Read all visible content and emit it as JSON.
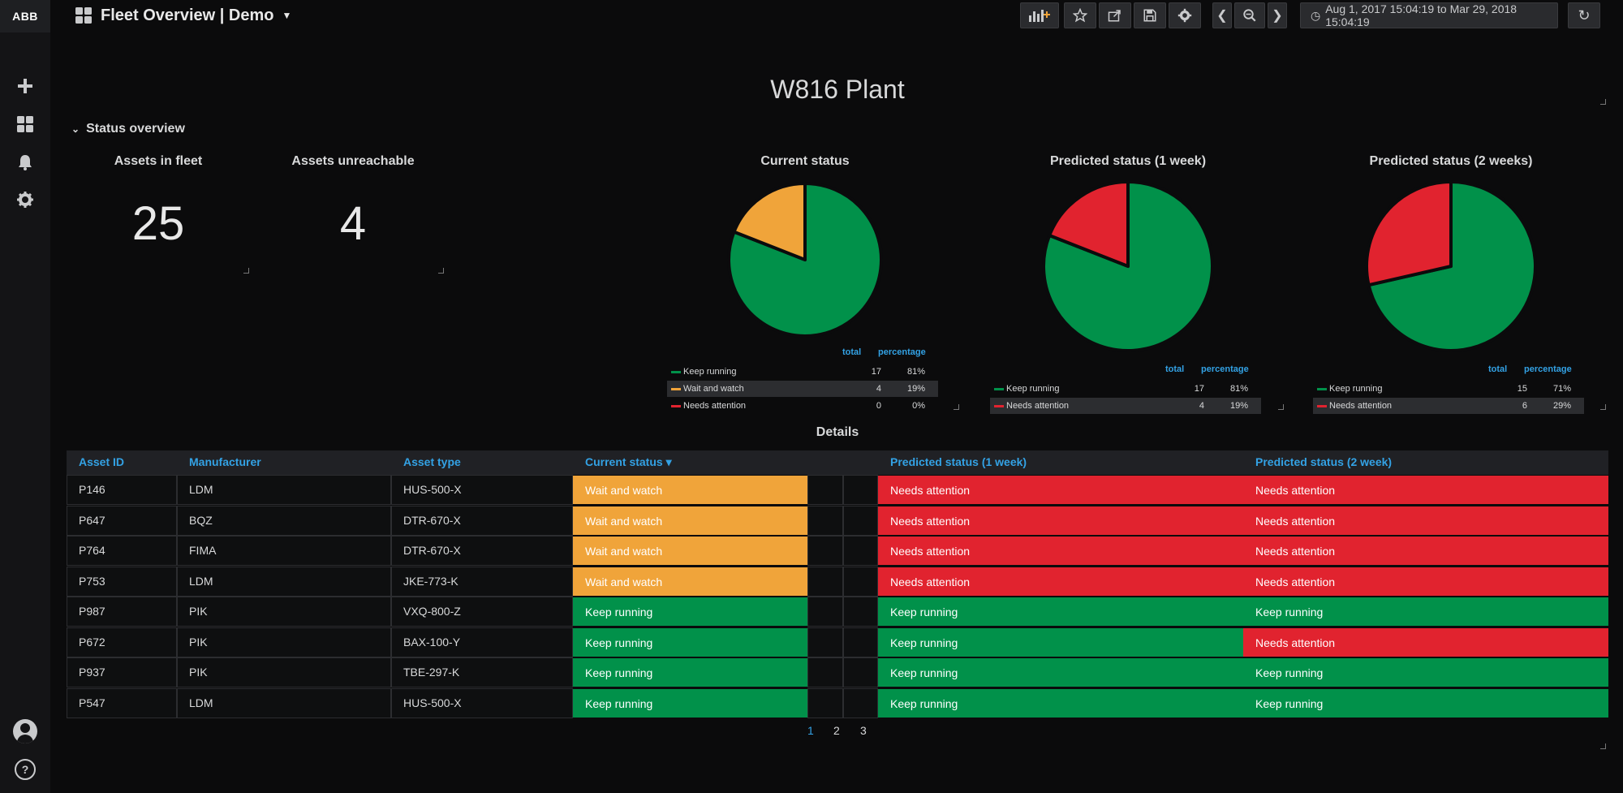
{
  "app": {
    "logo": "ABB",
    "dashboard_title": "Fleet Overview | Demo"
  },
  "toolbar": {
    "time_range": "Aug 1, 2017 15:04:19 to Mar 29, 2018 15:04:19"
  },
  "page_title": "W816 Plant",
  "row_title": "Status overview",
  "stats": [
    {
      "title": "Assets in fleet",
      "value": "25"
    },
    {
      "title": "Assets unreachable",
      "value": "4"
    }
  ],
  "colors": {
    "green": "#01914a",
    "orange": "#f0a43a",
    "red": "#e1232f",
    "accent": "#33a2e5"
  },
  "pies": [
    {
      "title": "Current status",
      "col_total": "total",
      "col_pct": "percentage",
      "slices": [
        {
          "name": "Keep running",
          "total": "17",
          "pct": "81%",
          "value": 17,
          "color": "#01914a"
        },
        {
          "name": "Wait and watch",
          "total": "4",
          "pct": "19%",
          "value": 4,
          "color": "#f0a43a"
        },
        {
          "name": "Needs attention",
          "total": "0",
          "pct": "0%",
          "value": 0,
          "color": "#e1232f"
        }
      ]
    },
    {
      "title": "Predicted status (1 week)",
      "col_total": "total",
      "col_pct": "percentage",
      "slices": [
        {
          "name": "Keep running",
          "total": "17",
          "pct": "81%",
          "value": 17,
          "color": "#01914a"
        },
        {
          "name": "Needs attention",
          "total": "4",
          "pct": "19%",
          "value": 4,
          "color": "#e1232f"
        }
      ]
    },
    {
      "title": "Predicted status (2 weeks)",
      "col_total": "total",
      "col_pct": "percentage",
      "slices": [
        {
          "name": "Keep running",
          "total": "15",
          "pct": "71%",
          "value": 15,
          "color": "#01914a"
        },
        {
          "name": "Needs attention",
          "total": "6",
          "pct": "29%",
          "value": 6,
          "color": "#e1232f"
        }
      ]
    }
  ],
  "details": {
    "title": "Details",
    "columns": [
      "Asset ID",
      "Manufacturer",
      "Asset type",
      "Current status ▾",
      "Predicted status (1 week)",
      "Predicted status (2 week)"
    ],
    "rows": [
      [
        "P146",
        "LDM",
        "HUS-500-X",
        "Wait and watch",
        "Needs attention",
        "Needs attention"
      ],
      [
        "P647",
        "BQZ",
        "DTR-670-X",
        "Wait and watch",
        "Needs attention",
        "Needs attention"
      ],
      [
        "P764",
        "FIMA",
        "DTR-670-X",
        "Wait and watch",
        "Needs attention",
        "Needs attention"
      ],
      [
        "P753",
        "LDM",
        "JKE-773-K",
        "Wait and watch",
        "Needs attention",
        "Needs attention"
      ],
      [
        "P987",
        "PIK",
        "VXQ-800-Z",
        "Keep running",
        "Keep running",
        "Keep running"
      ],
      [
        "P672",
        "PIK",
        "BAX-100-Y",
        "Keep running",
        "Keep running",
        "Needs attention"
      ],
      [
        "P937",
        "PIK",
        "TBE-297-K",
        "Keep running",
        "Keep running",
        "Keep running"
      ],
      [
        "P547",
        "LDM",
        "HUS-500-X",
        "Keep running",
        "Keep running",
        "Keep running"
      ]
    ],
    "pages": [
      "1",
      "2",
      "3"
    ],
    "current_page": "1"
  }
}
